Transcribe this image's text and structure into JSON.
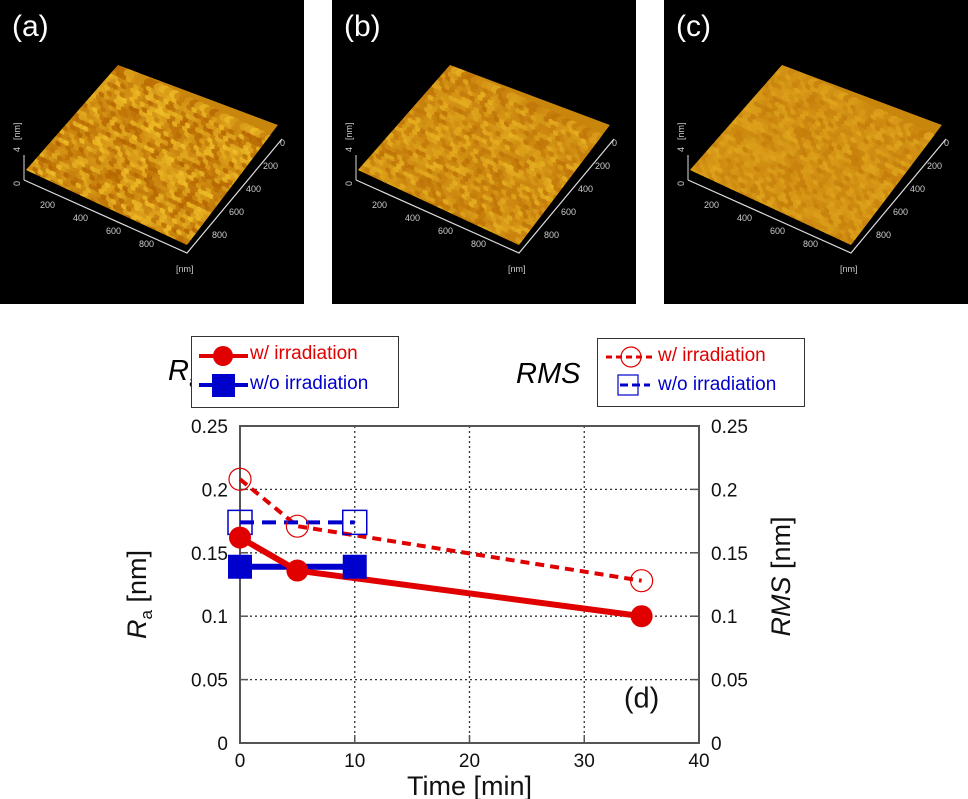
{
  "panels": [
    {
      "label": "(a)",
      "z_axis_label": "[nm]",
      "z_tick": "4",
      "z_zero": "0",
      "x_ticks": [
        "200",
        "400",
        "600",
        "800"
      ],
      "y_ticks": [
        "0",
        "200",
        "400",
        "600",
        "800"
      ],
      "unit": "[nm]",
      "roughness": "high"
    },
    {
      "label": "(b)",
      "z_axis_label": "[nm]",
      "z_tick": "4",
      "z_zero": "0",
      "x_ticks": [
        "200",
        "400",
        "600",
        "800"
      ],
      "y_ticks": [
        "0",
        "200",
        "400",
        "600",
        "800"
      ],
      "unit": "[nm]",
      "roughness": "medium"
    },
    {
      "label": "(c)",
      "z_axis_label": "[nm]",
      "z_tick": "4",
      "z_zero": "0",
      "x_ticks": [
        "200",
        "400",
        "600",
        "800"
      ],
      "y_ticks": [
        "0",
        "200",
        "400",
        "600",
        "800"
      ],
      "unit": "[nm]",
      "roughness": "low"
    }
  ],
  "legends": {
    "left": {
      "title_main": "R",
      "title_sub": "a",
      "items": [
        "w/ irradiation",
        "w/o irradiation"
      ]
    },
    "right": {
      "title": "RMS",
      "items": [
        "w/ irradiation",
        "w/o irradiation"
      ]
    }
  },
  "chart_data": {
    "type": "line",
    "panel_label": "(d)",
    "xlabel": "Time [min]",
    "ylabel_left": {
      "main": "R",
      "sub": "a",
      "unit": " [nm]"
    },
    "ylabel_right": {
      "main": "RMS",
      "unit": " [nm]"
    },
    "xlim": [
      0,
      40
    ],
    "ylim": [
      0,
      0.25
    ],
    "x_ticks": [
      0,
      10,
      20,
      30,
      40
    ],
    "y_ticks": [
      0,
      0.05,
      0.1,
      0.15,
      0.2,
      0.25
    ],
    "x_tick_labels": [
      "0",
      "10",
      "20",
      "30",
      "40"
    ],
    "y_tick_labels": [
      "0",
      "0.05",
      "0.1",
      "0.15",
      "0.2",
      "0.25"
    ],
    "grid": true,
    "colors": {
      "irradiated": "#e00000",
      "non_irradiated": "#0000cc"
    },
    "series": [
      {
        "name": "Ra w/ irradiation",
        "axis": "left",
        "marker": "filled-circle",
        "line": "solid",
        "color": "#e00000",
        "x": [
          0,
          5,
          35
        ],
        "y": [
          0.162,
          0.136,
          0.1
        ]
      },
      {
        "name": "Ra w/o irradiation",
        "axis": "left",
        "marker": "filled-square",
        "line": "solid",
        "color": "#0000cc",
        "x": [
          0,
          10
        ],
        "y": [
          0.139,
          0.139
        ]
      },
      {
        "name": "RMS w/ irradiation",
        "axis": "right",
        "marker": "open-circle",
        "line": "dashed",
        "color": "#e00000",
        "x": [
          0,
          5,
          35
        ],
        "y": [
          0.208,
          0.171,
          0.128
        ]
      },
      {
        "name": "RMS w/o irradiation",
        "axis": "right",
        "marker": "open-square",
        "line": "dashed",
        "color": "#0000cc",
        "x": [
          0,
          10
        ],
        "y": [
          0.174,
          0.174
        ]
      }
    ]
  }
}
